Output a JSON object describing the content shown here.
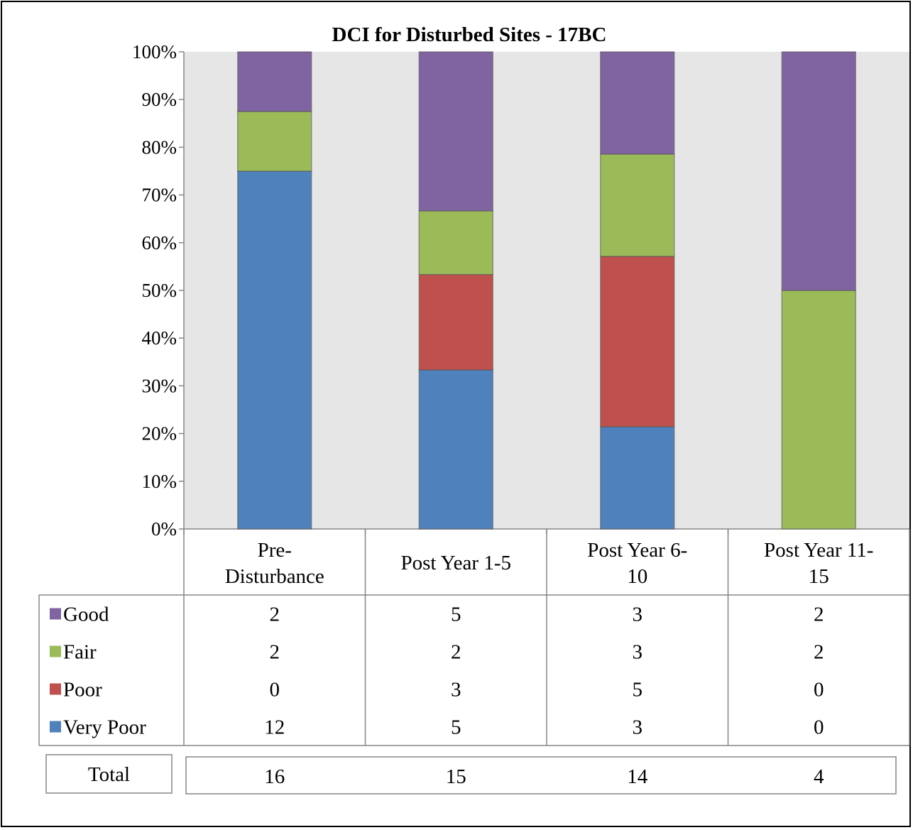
{
  "chart_data": {
    "type": "bar",
    "stacked": "percent",
    "title": "DCI for Disturbed Sites - 17BC",
    "xlabel": "",
    "ylabel": "",
    "ylim": [
      0,
      100
    ],
    "y_ticks": [
      "0%",
      "10%",
      "20%",
      "30%",
      "40%",
      "50%",
      "60%",
      "70%",
      "80%",
      "90%",
      "100%"
    ],
    "categories": [
      [
        "Pre-",
        "Disturbance"
      ],
      [
        "Post Year 1-5"
      ],
      [
        "Post Year 6-",
        "10"
      ],
      [
        "Post Year 11-",
        "15"
      ]
    ],
    "series": [
      {
        "name": "Very Poor",
        "color": "#4f81bd",
        "values": [
          12,
          5,
          3,
          0
        ]
      },
      {
        "name": "Poor",
        "color": "#c0504d",
        "values": [
          0,
          3,
          5,
          0
        ]
      },
      {
        "name": "Fair",
        "color": "#9bbb59",
        "values": [
          2,
          2,
          3,
          2
        ]
      },
      {
        "name": "Good",
        "color": "#8064a2",
        "values": [
          2,
          5,
          3,
          2
        ]
      }
    ],
    "table_row_order": [
      "Good",
      "Fair",
      "Poor",
      "Very Poor"
    ],
    "total_label": "Total",
    "totals": [
      16,
      15,
      14,
      4
    ],
    "grid": false,
    "plot_background": "#e6e6e6",
    "legend": "data-table-left"
  }
}
